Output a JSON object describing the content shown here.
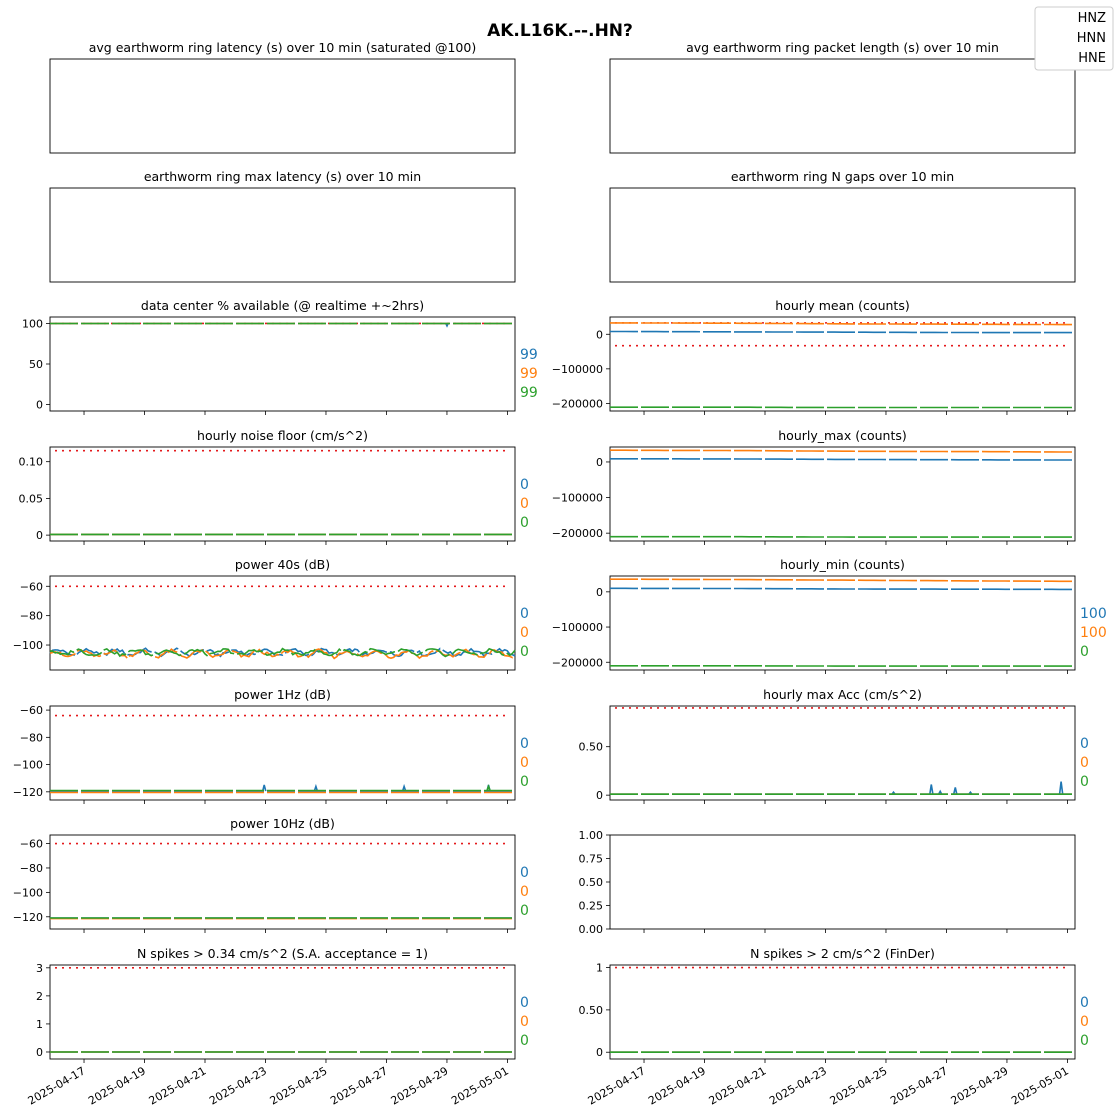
{
  "suptitle": "AK.L16K.--.HN?",
  "legend": {
    "placement": "top-right",
    "entries": [
      "HNZ",
      "HNN",
      "HNE"
    ],
    "colors": {
      "HNZ": "#1f77b4",
      "HNN": "#ff7f0e",
      "HNE": "#2ca02c"
    }
  },
  "threshold_color": "#e41a1c",
  "x_ticks": [
    "2025-04-17",
    "2025-04-19",
    "2025-04-21",
    "2025-04-23",
    "2025-04-25",
    "2025-04-27",
    "2025-04-29",
    "2025-05-01"
  ],
  "x_range": [
    "2025-04-15T21:00",
    "2025-05-01T06:00"
  ],
  "chart_data": [
    {
      "id": "ring_latency",
      "type": "line",
      "title": "avg earthworm ring latency (s)   over 10 min (saturated @100)",
      "empty": true,
      "series": []
    },
    {
      "id": "ring_packet",
      "type": "line",
      "title": "avg earthworm ring packet length (s)   over 10 min",
      "empty": true,
      "series": []
    },
    {
      "id": "ring_maxlat",
      "type": "line",
      "title": "earthworm ring max latency (s)   over 10 min",
      "empty": true,
      "series": []
    },
    {
      "id": "ring_gaps",
      "type": "line",
      "title": "earthworm ring N gaps   over 10 min",
      "empty": true,
      "series": []
    },
    {
      "id": "pct_avail",
      "type": "line",
      "title": "data center % available (@ realtime +~2hrs)",
      "ylim": [
        -8,
        108
      ],
      "yticks": [
        0,
        50,
        100
      ],
      "threshold": [
        100
      ],
      "series": [
        {
          "name": "HNZ",
          "level": 100,
          "dip": {
            "date": "2025-04-29T00:00",
            "value": 97
          }
        },
        {
          "name": "HNN",
          "level": 100
        },
        {
          "name": "HNE",
          "level": 100
        }
      ],
      "side_labels": [
        "99",
        "99",
        "99"
      ]
    },
    {
      "id": "hourly_mean",
      "type": "line",
      "title": "hourly mean (counts)",
      "ylim": [
        -222000,
        50000
      ],
      "yticks": [
        0,
        -100000,
        -200000
      ],
      "threshold": [
        33000,
        -33000
      ],
      "series": [
        {
          "name": "HNZ",
          "x": [
            "2025-04-16",
            "2025-04-20",
            "2025-04-24",
            "2025-04-28",
            "2025-05-01"
          ],
          "y": [
            8000,
            7000,
            6000,
            5000,
            5000
          ]
        },
        {
          "name": "HNN",
          "x": [
            "2025-04-16",
            "2025-04-20",
            "2025-04-24",
            "2025-04-28",
            "2025-05-01"
          ],
          "y": [
            33000,
            32000,
            30000,
            29000,
            28000
          ]
        },
        {
          "name": "HNE",
          "x": [
            "2025-04-16",
            "2025-04-20",
            "2025-04-24",
            "2025-04-28",
            "2025-05-01"
          ],
          "y": [
            -211000,
            -211000,
            -212000,
            -212000,
            -212000
          ]
        }
      ],
      "side_labels": []
    },
    {
      "id": "noise_floor",
      "type": "line",
      "title": "hourly noise floor (cm/s^2)",
      "ylim": [
        -0.008,
        0.12
      ],
      "yticks": [
        0.0,
        0.05,
        0.1
      ],
      "threshold": [
        0.115
      ],
      "series": [
        {
          "name": "HNZ",
          "level": 0.001
        },
        {
          "name": "HNN",
          "level": 0.001
        },
        {
          "name": "HNE",
          "level": 0.001
        }
      ],
      "side_labels": [
        "0",
        "0",
        "0"
      ]
    },
    {
      "id": "hourly_max",
      "type": "line",
      "title": "hourly_max (counts)",
      "ylim": [
        -222000,
        42000
      ],
      "yticks": [
        0,
        -100000,
        -200000
      ],
      "threshold": [],
      "series": [
        {
          "name": "HNZ",
          "x": [
            "2025-04-16",
            "2025-04-20",
            "2025-04-24",
            "2025-04-28",
            "2025-05-01"
          ],
          "y": [
            9000,
            8500,
            7000,
            6000,
            5500
          ]
        },
        {
          "name": "HNN",
          "x": [
            "2025-04-16",
            "2025-04-20",
            "2025-04-24",
            "2025-04-28",
            "2025-05-01"
          ],
          "y": [
            33000,
            32000,
            30000,
            29000,
            28000
          ]
        },
        {
          "name": "HNE",
          "x": [
            "2025-04-16",
            "2025-04-20",
            "2025-04-24",
            "2025-04-28",
            "2025-05-01"
          ],
          "y": [
            -210000,
            -210000,
            -211000,
            -211000,
            -211000
          ]
        }
      ],
      "side_labels": []
    },
    {
      "id": "power_40s",
      "type": "line",
      "title": "power 40s (dB)",
      "ylim": [
        -117,
        -53
      ],
      "yticks": [
        -60,
        -80,
        -100
      ],
      "threshold": [
        -60
      ],
      "series": [
        {
          "name": "HNZ",
          "level": -105,
          "amp": 2.5
        },
        {
          "name": "HNN",
          "level": -106,
          "amp": 2.8
        },
        {
          "name": "HNE",
          "level": -105,
          "amp": 2.5
        }
      ],
      "side_labels": [
        "0",
        "0",
        "0"
      ]
    },
    {
      "id": "hourly_min",
      "type": "line",
      "title": "hourly_min (counts)",
      "ylim": [
        -222000,
        45000
      ],
      "yticks": [
        0,
        -100000,
        -200000
      ],
      "threshold": [],
      "series": [
        {
          "name": "HNZ",
          "x": [
            "2025-04-16",
            "2025-04-20",
            "2025-04-24",
            "2025-04-28",
            "2025-05-01"
          ],
          "y": [
            10000,
            9500,
            8000,
            7500,
            7000
          ]
        },
        {
          "name": "HNN",
          "x": [
            "2025-04-16",
            "2025-04-20",
            "2025-04-24",
            "2025-04-28",
            "2025-05-01"
          ],
          "y": [
            36000,
            35000,
            33000,
            31000,
            30000
          ]
        },
        {
          "name": "HNE",
          "x": [
            "2025-04-16",
            "2025-04-20",
            "2025-04-24",
            "2025-04-28",
            "2025-05-01"
          ],
          "y": [
            -210000,
            -210000,
            -211000,
            -211000,
            -211000
          ]
        }
      ],
      "side_labels": [
        "100",
        "100",
        "0"
      ]
    },
    {
      "id": "power_1hz",
      "type": "line",
      "title": "power 1Hz (dB)",
      "ylim": [
        -126,
        -57
      ],
      "yticks": [
        -60,
        -80,
        -100,
        -120
      ],
      "threshold": [
        -64
      ],
      "series": [
        {
          "name": "HNZ",
          "level": -119.5,
          "spikes": [
            {
              "date": "2025-04-22T23:00",
              "value": -115
            },
            {
              "date": "2025-04-24T16:00",
              "value": -116
            },
            {
              "date": "2025-04-27T14:00",
              "value": -116
            },
            {
              "date": "2025-04-30T09:00",
              "value": -115
            }
          ]
        },
        {
          "name": "HNN",
          "level": -120.5
        },
        {
          "name": "HNE",
          "level": -119,
          "spikes": [
            {
              "date": "2025-04-30T09:00",
              "value": -116
            }
          ]
        }
      ],
      "side_labels": [
        "0",
        "0",
        "0"
      ]
    },
    {
      "id": "hourly_max_acc",
      "type": "line",
      "title": "hourly max Acc (cm/s^2)",
      "ylim": [
        -0.05,
        0.92
      ],
      "yticks": [
        0.0,
        0.5
      ],
      "threshold": [
        0.9
      ],
      "series": [
        {
          "name": "HNZ",
          "level": 0.01,
          "spikes": [
            {
              "date": "2025-04-25T06:00",
              "value": 0.03
            },
            {
              "date": "2025-04-26T12:00",
              "value": 0.11
            },
            {
              "date": "2025-04-26T19:00",
              "value": 0.04
            },
            {
              "date": "2025-04-27T07:00",
              "value": 0.08
            },
            {
              "date": "2025-04-27T19:00",
              "value": 0.03
            },
            {
              "date": "2025-04-30T19:00",
              "value": 0.14
            }
          ]
        },
        {
          "name": "HNN",
          "level": 0.01
        },
        {
          "name": "HNE",
          "level": 0.01
        }
      ],
      "side_labels": [
        "0",
        "0",
        "0"
      ]
    },
    {
      "id": "power_10hz",
      "type": "line",
      "title": "power 10Hz (dB)",
      "ylim": [
        -130,
        -53
      ],
      "yticks": [
        -60,
        -80,
        -100,
        -120
      ],
      "threshold": [
        -60
      ],
      "series": [
        {
          "name": "HNZ",
          "level": -121
        },
        {
          "name": "HNN",
          "level": -121.5
        },
        {
          "name": "HNE",
          "level": -121
        }
      ],
      "side_labels": [
        "0",
        "0",
        "0"
      ]
    },
    {
      "id": "blank",
      "type": "line",
      "title": "",
      "empty": true,
      "ylim": [
        0,
        1
      ],
      "yticks": [
        0.0,
        0.25,
        0.5,
        0.75,
        1.0
      ],
      "ytick_labels": [
        "0.00",
        "0.25",
        "0.50",
        "0.75",
        "1.00"
      ],
      "series": []
    },
    {
      "id": "spikes_034",
      "type": "line",
      "title": "N spikes > 0.34 cm/s^2 (S.A. acceptance = 1)",
      "ylim": [
        -0.25,
        3.1
      ],
      "yticks": [
        0,
        1,
        2,
        3
      ],
      "threshold": [
        3
      ],
      "series": [
        {
          "name": "HNZ",
          "level": 0
        },
        {
          "name": "HNN",
          "level": 0
        },
        {
          "name": "HNE",
          "level": 0
        }
      ],
      "side_labels": [
        "0",
        "0",
        "0"
      ]
    },
    {
      "id": "spikes_2",
      "type": "line",
      "title": "N spikes > 2 cm/s^2 (FinDer)",
      "ylim": [
        -0.08,
        1.03
      ],
      "yticks": [
        0.0,
        0.5,
        1.0
      ],
      "threshold": [
        1
      ],
      "series": [
        {
          "name": "HNZ",
          "level": 0
        },
        {
          "name": "HNN",
          "level": 0
        },
        {
          "name": "HNE",
          "level": 0
        }
      ],
      "side_labels": [
        "0",
        "0",
        "0"
      ]
    }
  ]
}
